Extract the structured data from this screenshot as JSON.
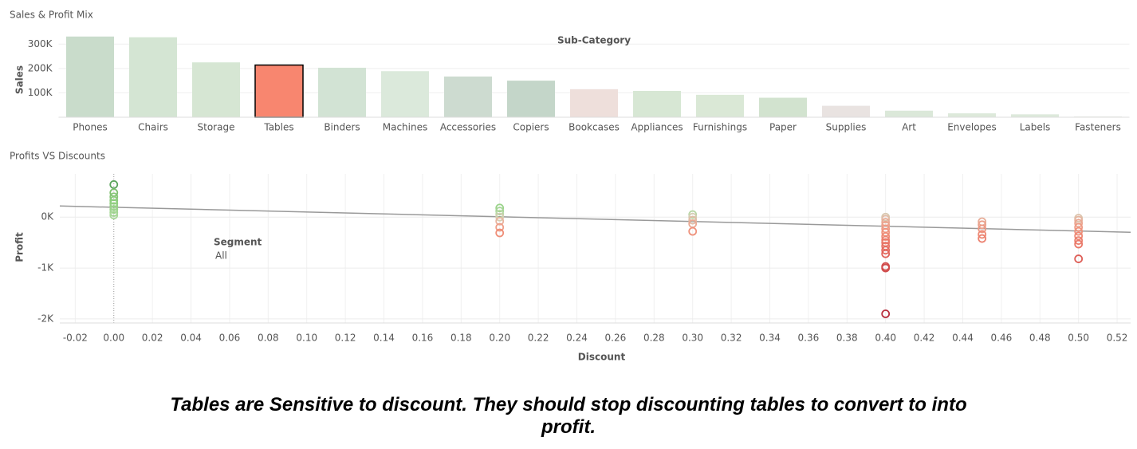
{
  "chart_data": [
    {
      "type": "bar",
      "title": "Sales & Profit Mix",
      "x_label": "Sub-Category",
      "y_label": "Sales",
      "categories": [
        "Phones",
        "Chairs",
        "Storage",
        "Tables",
        "Binders",
        "Machines",
        "Accessories",
        "Copiers",
        "Bookcases",
        "Appliances",
        "Furnishings",
        "Paper",
        "Supplies",
        "Art",
        "Envelopes",
        "Labels",
        "Fasteners"
      ],
      "values": [
        331000,
        328000,
        225000,
        214000,
        203000,
        189000,
        167000,
        150000,
        115000,
        108000,
        92000,
        80000,
        47000,
        27000,
        16000,
        12000,
        3000
      ],
      "colors": [
        "#c9dccb",
        "#d4e5d3",
        "#d6e6d3",
        "#f8866f",
        "#d2e3d4",
        "#dbe9db",
        "#cddbd0",
        "#c4d6c9",
        "#eedfdb",
        "#d7e7d4",
        "#dae8d6",
        "#d2e3cf",
        "#e9e3e1",
        "#dbe8d9",
        "#dde9da",
        "#dde9db",
        "#e6ece5"
      ],
      "selected": "Tables",
      "ylim": [
        0,
        350000
      ],
      "yticks": [
        {
          "value": 100000,
          "label": "100K"
        },
        {
          "value": 200000,
          "label": "200K"
        },
        {
          "value": 300000,
          "label": "300K"
        }
      ],
      "grid": true
    },
    {
      "type": "scatter",
      "title": "Profits VS Discounts",
      "x_label": "Discount",
      "y_label": "Profit",
      "legend": {
        "title": "Segment",
        "items": [
          "All"
        ]
      },
      "x": [
        0,
        0,
        0,
        0,
        0,
        0,
        0,
        0,
        0,
        0.2,
        0.2,
        0.2,
        0.2,
        0.2,
        0.2,
        0.2,
        0.3,
        0.3,
        0.3,
        0.3,
        0.3,
        0.4,
        0.4,
        0.4,
        0.4,
        0.4,
        0.4,
        0.4,
        0.4,
        0.4,
        0.4,
        0.4,
        0.4,
        0.4,
        0.4,
        0.4,
        0.45,
        0.45,
        0.45,
        0.45,
        0.45,
        0.5,
        0.5,
        0.5,
        0.5,
        0.5,
        0.5,
        0.5,
        0.5,
        0.5
      ],
      "values": [
        640,
        480,
        400,
        330,
        270,
        210,
        150,
        90,
        40,
        180,
        120,
        60,
        0,
        -80,
        -200,
        -310,
        50,
        0,
        -60,
        -130,
        -280,
        0,
        -40,
        -100,
        -160,
        -230,
        -300,
        -380,
        -450,
        -500,
        -570,
        -650,
        -720,
        -970,
        -1000,
        -1900,
        -90,
        -150,
        -230,
        -340,
        -420,
        -20,
        -60,
        -120,
        -200,
        -280,
        -370,
        -460,
        -530,
        -820
      ],
      "colors": [
        "#5aa35a",
        "#7fc06f",
        "#86c577",
        "#8ccb7c",
        "#8fcf7f",
        "#95d085",
        "#9ad38a",
        "#a2d593",
        "#aad89b",
        "#9ad38a",
        "#a6d597",
        "#bcd9a8",
        "#d5cdb4",
        "#e9b39e",
        "#ee9f89",
        "#ef8e78",
        "#b8d6a5",
        "#d5cdb4",
        "#e1bca6",
        "#eaa893",
        "#ef927c",
        "#d8c8b0",
        "#e2bba6",
        "#e9ab96",
        "#eda28c",
        "#ef9a84",
        "#ef927c",
        "#ee8b76",
        "#ec8270",
        "#ea7a6a",
        "#e77365",
        "#e46b60",
        "#e0635b",
        "#d4514f",
        "#d04c4d",
        "#b8303f",
        "#e8ae99",
        "#eba18c",
        "#ed9884",
        "#ee8b76",
        "#ec8270",
        "#dcc3ac",
        "#e5b5a0",
        "#eba590",
        "#ee9a84",
        "#ef927c",
        "#ee8874",
        "#ec7f6d",
        "#e97868",
        "#de5f58"
      ],
      "trend": {
        "x": [
          -0.028,
          0.527
        ],
        "values": [
          219,
          -297
        ],
        "color": "#999999"
      },
      "xlim": [
        -0.028,
        0.527
      ],
      "xticks": [
        -0.02,
        {
          "value": 0,
          "label": "0.00"
        },
        0.02,
        0.04,
        0.06,
        0.08,
        {
          "value": 0.1,
          "label": "0.10"
        },
        0.12,
        0.14,
        0.16,
        0.18,
        {
          "value": 0.2,
          "label": "0.20"
        },
        0.22,
        0.24,
        0.26,
        0.28,
        {
          "value": 0.3,
          "label": "0.30"
        },
        0.32,
        0.34,
        0.36,
        0.38,
        {
          "value": 0.4,
          "label": "0.40"
        },
        0.42,
        0.44,
        0.46,
        0.48,
        {
          "value": 0.5,
          "label": "0.50"
        },
        0.52
      ],
      "ylim": [
        -2080,
        850
      ],
      "yticks": [
        {
          "value": 0,
          "label": "0K"
        },
        {
          "value": -1000,
          "label": "-1K"
        },
        {
          "value": -2000,
          "label": "-2K"
        }
      ],
      "grid": true
    }
  ],
  "caption": "Tables are Sensitive to discount. They should stop discounting tables to convert to into profit."
}
